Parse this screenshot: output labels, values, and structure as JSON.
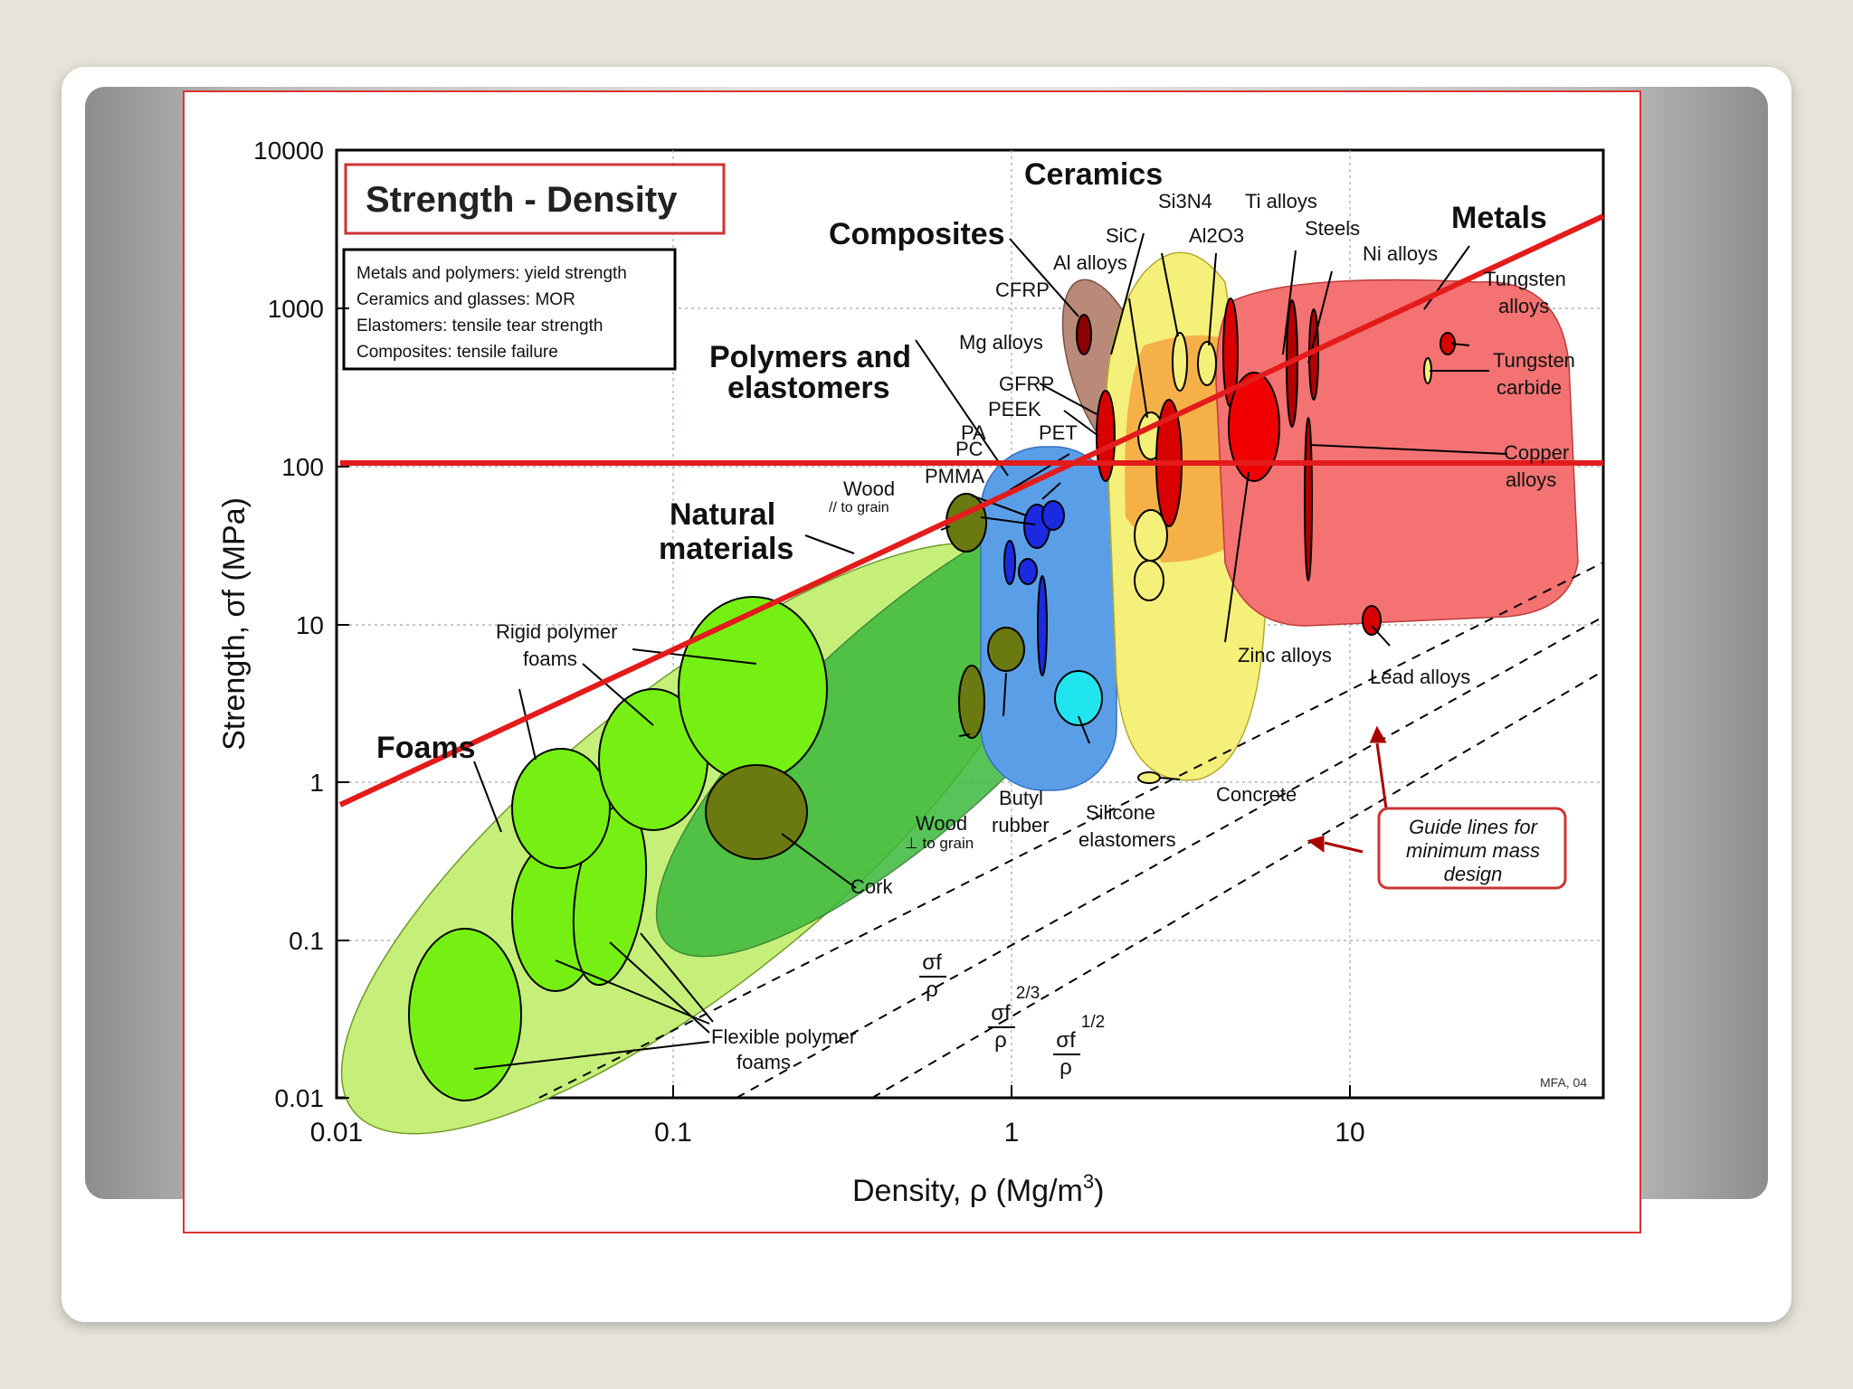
{
  "colors": {
    "foams": "#c6ef7a",
    "natural": "#3cb93c",
    "polymers": "#5b9ee8",
    "composites": "#b98a7a",
    "ceramics": "#f5f07a",
    "ceramics_orange": "#f5a640",
    "metals": "#f47272",
    "overlay_line": "#e41b1b"
  },
  "chart_data": {
    "type": "scatter",
    "title": "Strength - Density",
    "xlabel": "Density, ρ  (Mg/m³)",
    "ylabel": "Strength, σf (MPa)",
    "xscale": "log",
    "yscale": "log",
    "xlim": [
      0.01,
      50
    ],
    "ylim": [
      0.01,
      10000
    ],
    "x_ticks": [
      "0.01",
      "0.1",
      "1",
      "10"
    ],
    "y_ticks": [
      "0.01",
      "0.1",
      "1",
      "10",
      "100",
      "1000",
      "10000"
    ],
    "grid": true,
    "legend_box": [
      "Metals and polymers: yield strength",
      "Ceramics and glasses: MOR",
      "Elastomers: tensile tear strength",
      "Composites: tensile failure"
    ],
    "families": [
      {
        "name": "Foams",
        "x_range": [
          0.01,
          0.9
        ],
        "y_range": [
          0.01,
          20
        ]
      },
      {
        "name": "Natural materials",
        "x_range": [
          0.1,
          1.2
        ],
        "y_range": [
          0.2,
          200
        ]
      },
      {
        "name": "Polymers and elastomers",
        "x_range": [
          0.8,
          2.3
        ],
        "y_range": [
          0.5,
          150
        ]
      },
      {
        "name": "Composites",
        "x_range": [
          1.4,
          2.2
        ],
        "y_range": [
          50,
          1500
        ]
      },
      {
        "name": "Ceramics",
        "x_range": [
          2.0,
          5.0
        ],
        "y_range": [
          0.8,
          3000
        ]
      },
      {
        "name": "Metals",
        "x_range": [
          1.8,
          25
        ],
        "y_range": [
          5,
          2500
        ]
      }
    ],
    "materials": [
      {
        "label": "Rigid polymer foams"
      },
      {
        "label": "Flexible polymer foams"
      },
      {
        "label": "Cork"
      },
      {
        "label": "Wood // to grain"
      },
      {
        "label": "Wood ⊥ to grain"
      },
      {
        "label": "Butyl rubber"
      },
      {
        "label": "Silicone elastomers"
      },
      {
        "label": "Concrete"
      },
      {
        "label": "Zinc alloys"
      },
      {
        "label": "Lead alloys"
      },
      {
        "label": "Copper alloys"
      },
      {
        "label": "Tungsten alloys"
      },
      {
        "label": "Tungsten carbide"
      },
      {
        "label": "Ni alloys"
      },
      {
        "label": "Steels"
      },
      {
        "label": "Ti alloys"
      },
      {
        "label": "Al alloys"
      },
      {
        "label": "Mg alloys"
      },
      {
        "label": "CFRP"
      },
      {
        "label": "GFRP"
      },
      {
        "label": "PEEK"
      },
      {
        "label": "PET"
      },
      {
        "label": "PA"
      },
      {
        "label": "PC"
      },
      {
        "label": "PMMA"
      },
      {
        "label": "SiC"
      },
      {
        "label": "Si3N4"
      },
      {
        "label": "Al2O3"
      }
    ],
    "guide_lines": [
      "σf/ρ",
      "σf^(2/3)/ρ",
      "σf^(1/2)/ρ"
    ],
    "guide_box": "Guide lines for minimum mass design",
    "credit": "MFA, 04",
    "overlay_lines": [
      {
        "kind": "horizontal",
        "y": 110
      },
      {
        "kind": "diagonal",
        "points": [
          [
            0.01,
            0.75
          ],
          [
            50,
            4000
          ]
        ]
      }
    ]
  },
  "text": {
    "title": "Strength - Density",
    "legend_1": "Metals and polymers: yield strength",
    "legend_2": "Ceramics and glasses: MOR",
    "legend_3": "Elastomers: tensile tear strength",
    "legend_4": "Composites: tensile failure",
    "x_tick_1": "0.01",
    "x_tick_2": "0.1",
    "x_tick_3": "1",
    "x_tick_4": "10",
    "y_tick_1": "0.01",
    "y_tick_2": "0.1",
    "y_tick_3": "1",
    "y_tick_4": "10",
    "y_tick_5": "100",
    "y_tick_6": "1000",
    "y_tick_7": "10000",
    "ylabel": "Strength, σf (MPa)",
    "xlabel_main": "Density, ρ  (Mg/m",
    "xlabel_sup": "3",
    "xlabel_end": ")",
    "fam_ceramics": "Ceramics",
    "fam_composites": "Composites",
    "fam_metals": "Metals",
    "fam_poly_1": "Polymers and",
    "fam_poly_2": "elastomers",
    "fam_natural_1": "Natural",
    "fam_natural_2": "materials",
    "fam_foams": "Foams",
    "lbl_si3n4": "Si3N4",
    "lbl_ti": "Ti alloys",
    "lbl_sic": "SiC",
    "lbl_al2o3": "Al2O3",
    "lbl_steels": "Steels",
    "lbl_ni": "Ni alloys",
    "lbl_al": "Al alloys",
    "lbl_w1": "Tungsten",
    "lbl_w2": "alloys",
    "lbl_cfrp": "CFRP",
    "lbl_mg": "Mg alloys",
    "lbl_wc1": "Tungsten",
    "lbl_wc2": "carbide",
    "lbl_gfrp": "GFRP",
    "lbl_peek": "PEEK",
    "lbl_pa": "PA",
    "lbl_pet": "PET",
    "lbl_pc": "PC",
    "lbl_cu1": "Copper",
    "lbl_cu2": "alloys",
    "lbl_pmma": "PMMA",
    "lbl_wood1": "Wood",
    "lbl_wood2": "// to grain",
    "lbl_rigid1": "Rigid polymer",
    "lbl_rigid2": "foams",
    "lbl_zinc": "Zinc alloys",
    "lbl_lead": "Lead alloys",
    "lbl_butyl1": "Butyl",
    "lbl_butyl2": "rubber",
    "lbl_woodp1": "Wood",
    "lbl_woodp2": "⊥ to grain",
    "lbl_silicone1": "Silicone",
    "lbl_silicone2": "elastomers",
    "lbl_concrete": "Concrete",
    "lbl_cork": "Cork",
    "lbl_flex1": "Flexible polymer",
    "lbl_flex2": "foams",
    "guide_1": "Guide lines for",
    "guide_2": "minimum mass",
    "guide_3": "design",
    "frac_num": "σf",
    "frac_den": "ρ",
    "exp_23": "2/3",
    "exp_12": "1/2",
    "credit": "MFA, 04"
  }
}
